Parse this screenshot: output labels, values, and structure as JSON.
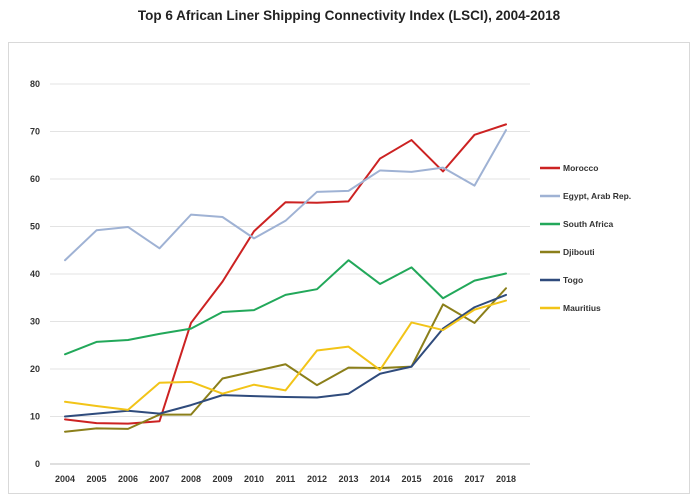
{
  "title": "Top 6 African Liner Shipping Connectivity Index (LSCI), 2004-2018",
  "chart_data": {
    "type": "line",
    "title": "Top 6 African Liner Shipping Connectivity Index (LSCI), 2004-2018",
    "x": [
      "2004",
      "2005",
      "2006",
      "2007",
      "2008",
      "2009",
      "2010",
      "2011",
      "2012",
      "2013",
      "2014",
      "2015",
      "2016",
      "2017",
      "2018"
    ],
    "y_ticks": [
      "0",
      "10",
      "20",
      "30",
      "40",
      "50",
      "60",
      "70",
      "80"
    ],
    "ylim": [
      0,
      80
    ],
    "grid": "horizontal",
    "legend_position": "right",
    "series": [
      {
        "name": "Morocco",
        "color": "#cc2222",
        "values": [
          9.4,
          8.6,
          8.5,
          9.0,
          29.7,
          38.4,
          49.0,
          55.1,
          55.0,
          55.3,
          64.3,
          68.2,
          61.6,
          69.3,
          71.5
        ]
      },
      {
        "name": "Egypt, Arab Rep.",
        "color": "#9fb2d4",
        "values": [
          42.9,
          49.2,
          49.9,
          45.4,
          52.5,
          52.0,
          47.5,
          51.2,
          57.3,
          57.5,
          61.8,
          61.5,
          62.4,
          58.6,
          70.3
        ]
      },
      {
        "name": "South Africa",
        "color": "#22a85a",
        "values": [
          23.1,
          25.7,
          26.1,
          27.4,
          28.5,
          32.0,
          32.4,
          35.6,
          36.8,
          42.9,
          37.9,
          41.4,
          34.9,
          38.6,
          40.1
        ]
      },
      {
        "name": "Djibouti",
        "color": "#8b7f1a",
        "values": [
          6.8,
          7.5,
          7.4,
          10.4,
          10.4,
          18.0,
          19.5,
          21.0,
          16.6,
          20.3,
          20.2,
          20.5,
          33.6,
          29.7,
          37.0
        ]
      },
      {
        "name": "Togo",
        "color": "#2f4b7c",
        "values": [
          10.0,
          10.6,
          11.2,
          10.6,
          12.4,
          14.5,
          14.3,
          14.1,
          14.0,
          14.8,
          19.0,
          20.5,
          28.5,
          33.0,
          35.6
        ]
      },
      {
        "name": "Mauritius",
        "color": "#f2c418",
        "values": [
          13.1,
          12.2,
          11.4,
          17.1,
          17.3,
          14.8,
          16.7,
          15.5,
          23.9,
          24.7,
          19.8,
          29.8,
          28.2,
          32.5,
          34.4
        ]
      }
    ]
  }
}
